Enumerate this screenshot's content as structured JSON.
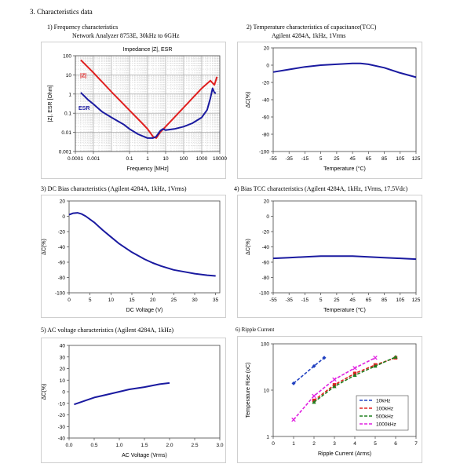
{
  "heading": "3. Characteristics data",
  "panels": [
    {
      "key": "p1",
      "title": "1) Frequency characteristics",
      "subtitle": "Network Analyzer 8753E, 30kHz to 6GHz",
      "chart_data": {
        "type": "line",
        "title": "Impedance |Z|, ESR",
        "xlabel": "Frequency [MHz]",
        "ylabel": "|Z|, ESR [Ohm]",
        "xscale": "log",
        "yscale": "log",
        "xlim": [
          0.0001,
          10000
        ],
        "ylim": [
          0.001,
          100
        ],
        "xticks": [
          0.0001,
          0.001,
          0.1,
          1,
          10,
          100,
          1000,
          10000
        ],
        "xtick_labels": [
          "0.0001",
          "0.001",
          "0.1",
          "1",
          "10",
          "100",
          "1000",
          "10000"
        ],
        "yticks": [
          0.001,
          0.01,
          0.1,
          1,
          10,
          100
        ],
        "ytick_labels": [
          "0.001",
          "0.01",
          "0.1",
          "1",
          "10",
          "100"
        ],
        "series": [
          {
            "name": "|Z|",
            "color": "#e02020",
            "x": [
              0.0002,
              0.001,
              0.01,
              0.1,
              0.5,
              1,
              2,
              3,
              5,
              10,
              100,
              1000,
              3000,
              5000,
              7000
            ],
            "y": [
              60,
              13,
              1.3,
              0.14,
              0.03,
              0.015,
              0.006,
              0.005,
              0.01,
              0.02,
              0.2,
              2,
              5,
              3,
              8
            ]
          },
          {
            "name": "ESR",
            "color": "#1a1aa0",
            "x": [
              0.0002,
              0.0005,
              0.001,
              0.003,
              0.01,
              0.05,
              0.1,
              0.3,
              1,
              2,
              3,
              5,
              7,
              10,
              30,
              100,
              300,
              1000,
              2000,
              3000,
              4000,
              5000,
              6000
            ],
            "y": [
              1.2,
              0.5,
              0.3,
              0.12,
              0.06,
              0.025,
              0.015,
              0.008,
              0.005,
              0.005,
              0.006,
              0.012,
              0.015,
              0.013,
              0.015,
              0.02,
              0.03,
              0.06,
              0.15,
              0.6,
              2,
              1.2,
              1.1
            ]
          }
        ],
        "legend": [
          {
            "label": "|Z|",
            "color": "#e02020"
          },
          {
            "label": "ESR",
            "color": "#1a1aa0"
          }
        ]
      }
    },
    {
      "key": "p2",
      "title": "2) Temperature characteristics of capacitance(TCC)",
      "subtitle": "Agilent 4284A, 1kHz, 1Vrms",
      "chart_data": {
        "type": "line",
        "xlabel": "Temperature (°C)",
        "ylabel": "ΔC(%)",
        "xlim": [
          -55,
          125
        ],
        "ylim": [
          -100,
          20
        ],
        "xticks": [
          -55,
          -35,
          -15,
          5,
          25,
          45,
          65,
          85,
          105,
          125
        ],
        "xtick_labels": [
          "-55",
          "-35",
          "-15",
          "5",
          "25",
          "45",
          "65",
          "85",
          "105",
          "125"
        ],
        "yticks": [
          -100,
          -80,
          -60,
          -40,
          -20,
          0,
          20
        ],
        "ytick_labels": [
          "-100",
          "-80",
          "-60",
          "-40",
          "-20",
          "0",
          "20"
        ],
        "series": [
          {
            "name": "TCC",
            "color": "#1a1aa0",
            "x": [
              -55,
              -35,
              -15,
              5,
              25,
              45,
              55,
              65,
              85,
              105,
              125
            ],
            "y": [
              -8,
              -5,
              -2,
              0,
              1,
              2,
              2,
              1,
              -3,
              -9,
              -14
            ]
          }
        ]
      }
    },
    {
      "key": "p3",
      "title": "3) DC Bias characteristics (Agilent 4284A, 1kHz, 1Vrms)",
      "chart_data": {
        "type": "line",
        "xlabel": "DC Voltage (V)",
        "ylabel": "ΔC(%)",
        "xlim": [
          0,
          36
        ],
        "ylim": [
          -100,
          20
        ],
        "xticks": [
          0,
          5,
          10,
          15,
          20,
          25,
          30,
          35
        ],
        "xtick_labels": [
          "0",
          "5",
          "10",
          "15",
          "20",
          "25",
          "30",
          "35"
        ],
        "yticks": [
          -100,
          -80,
          -60,
          -40,
          -20,
          0,
          20
        ],
        "ytick_labels": [
          "-100",
          "-80",
          "-60",
          "-40",
          "-20",
          "0",
          "20"
        ],
        "series": [
          {
            "name": "DC Bias",
            "color": "#1a1aa0",
            "x": [
              0,
              1,
              2,
              3,
              4,
              6,
              8,
              10,
              12,
              15,
              18,
              20,
              22,
              25,
              28,
              30,
              33,
              35
            ],
            "y": [
              2,
              4,
              4.5,
              3,
              0,
              -8,
              -18,
              -27,
              -36,
              -47,
              -56,
              -61,
              -65,
              -70,
              -73,
              -75,
              -77,
              -78
            ]
          }
        ]
      }
    },
    {
      "key": "p4",
      "title": "4) Bias TCC characteristics (Agilent 4284A, 1kHz, 1Vrms, 17.5Vdc)",
      "chart_data": {
        "type": "line",
        "xlabel": "Temperature (℃)",
        "ylabel": "ΔC(%)",
        "xlim": [
          -55,
          125
        ],
        "ylim": [
          -100,
          20
        ],
        "xticks": [
          -55,
          -35,
          -15,
          5,
          25,
          45,
          65,
          85,
          105,
          125
        ],
        "xtick_labels": [
          "-55",
          "-35",
          "-15",
          "5",
          "25",
          "45",
          "65",
          "85",
          "105",
          "125"
        ],
        "yticks": [
          -100,
          -80,
          -60,
          -40,
          -20,
          0,
          20
        ],
        "ytick_labels": [
          "-100",
          "-80",
          "-60",
          "-40",
          "-20",
          "0",
          "20"
        ],
        "series": [
          {
            "name": "Bias TCC",
            "color": "#1a1aa0",
            "x": [
              -55,
              -35,
              -15,
              5,
              25,
              45,
              65,
              85,
              105,
              125
            ],
            "y": [
              -55,
              -54,
              -53,
              -52,
              -52,
              -52,
              -53,
              -54,
              -55,
              -56
            ]
          }
        ]
      }
    },
    {
      "key": "p5",
      "title": "5) AC voltage characteristics (Agilent 4284A, 1kHz)",
      "chart_data": {
        "type": "line",
        "xlabel": "AC Voltage (Vrms)",
        "ylabel": "ΔC(%)",
        "xlim": [
          0,
          3
        ],
        "ylim": [
          -40,
          40
        ],
        "xticks": [
          0,
          0.5,
          1,
          1.5,
          2,
          2.5,
          3
        ],
        "xtick_labels": [
          "0.0",
          "0.5",
          "1.0",
          "1.5",
          "2.0",
          "2.5",
          "3.0"
        ],
        "yticks": [
          -40,
          -30,
          -20,
          -10,
          0,
          10,
          20,
          30,
          40
        ],
        "ytick_labels": [
          "-40",
          "-30",
          "-20",
          "-10",
          "0",
          "10",
          "20",
          "30",
          "40"
        ],
        "series": [
          {
            "name": "AC voltage",
            "color": "#1a1aa0",
            "x": [
              0.1,
              0.3,
              0.5,
              0.8,
              1.0,
              1.2,
              1.5,
              1.8,
              2.0
            ],
            "y": [
              -11,
              -8,
              -5,
              -2,
              0,
              2,
              4,
              6.5,
              7.5
            ]
          }
        ]
      }
    },
    {
      "key": "p6",
      "title": "6) Ripple Current",
      "chart_data": {
        "type": "line",
        "xlabel": "Ripple Current (Arms)",
        "ylabel": "Temperature Rise (oC)",
        "yscale": "log",
        "xlim": [
          0,
          7
        ],
        "ylim": [
          1,
          100
        ],
        "xticks": [
          0,
          1,
          2,
          3,
          4,
          5,
          6,
          7
        ],
        "xtick_labels": [
          "0",
          "1",
          "2",
          "3",
          "4",
          "5",
          "6",
          "7"
        ],
        "yticks": [
          1,
          10,
          100
        ],
        "ytick_labels": [
          "1",
          "10",
          "100"
        ],
        "series": [
          {
            "name": "10kHz",
            "color": "#2040c0",
            "marker": "diamond",
            "x": [
              1,
              2,
              2.5
            ],
            "y": [
              14,
              33,
              50
            ]
          },
          {
            "name": "100kHz",
            "color": "#e02020",
            "marker": "square",
            "x": [
              2,
              3,
              4,
              5,
              6
            ],
            "y": [
              6,
              13,
              23,
              35,
              50
            ]
          },
          {
            "name": "500kHz",
            "color": "#208020",
            "marker": "triangle",
            "x": [
              2,
              3,
              4,
              5,
              6
            ],
            "y": [
              5.5,
              12,
              21,
              33,
              52
            ]
          },
          {
            "name": "1000kHz",
            "color": "#e020e0",
            "marker": "cross",
            "x": [
              1,
              2,
              3,
              4,
              5
            ],
            "y": [
              2.3,
              7.5,
              17,
              30,
              50
            ]
          }
        ],
        "legend": [
          {
            "label": "10kHz",
            "color": "#2040c0"
          },
          {
            "label": "100kHz",
            "color": "#e02020"
          },
          {
            "label": "500kHz",
            "color": "#208020"
          },
          {
            "label": "1000kHz",
            "color": "#e020e0"
          }
        ]
      }
    }
  ]
}
